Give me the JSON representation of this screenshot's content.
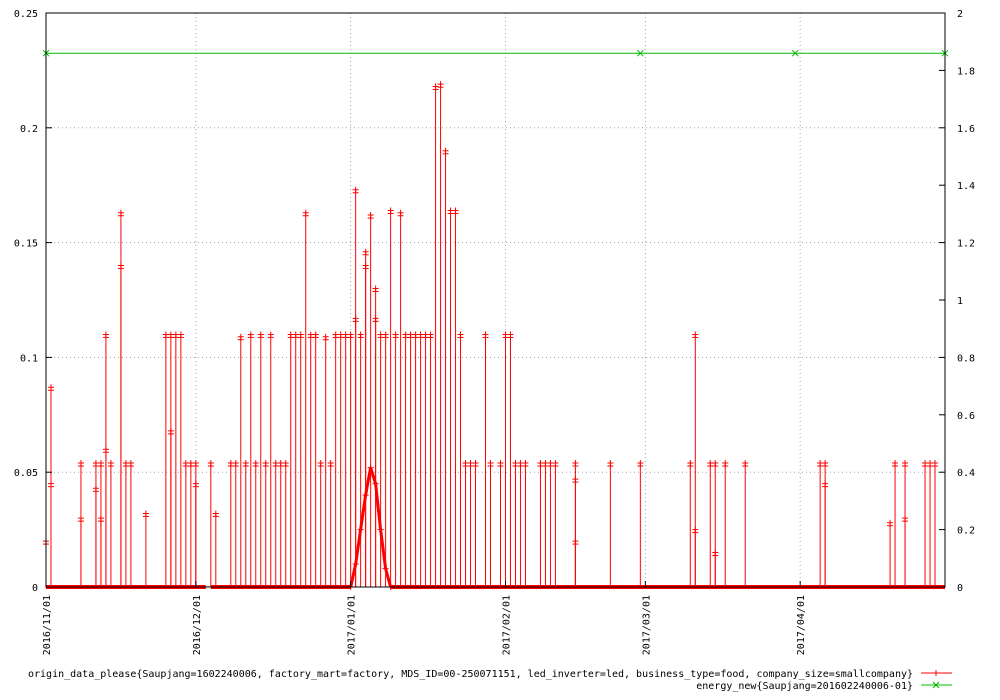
{
  "chart_data": {
    "type": "line",
    "title": "",
    "xlabel": "",
    "ylabel": "",
    "y2label": "",
    "grid": true,
    "legend_position": "bottom-right",
    "x_range": [
      "2016-11-01",
      "2017-04-30"
    ],
    "x_ticks": [
      "2016/11/01",
      "2016/12/01",
      "2017/01/01",
      "2017/02/01",
      "2017/03/01",
      "2017/04/01"
    ],
    "y_range": [
      0,
      0.25
    ],
    "y_ticks": [
      "0",
      "0.05",
      "0.1",
      "0.15",
      "0.2",
      "0.25"
    ],
    "y2_range": [
      0,
      2
    ],
    "y2_ticks": [
      "0",
      "0.2",
      "0.4",
      "0.6",
      "0.8",
      "1",
      "1.2",
      "1.4",
      "1.6",
      "1.8",
      "2"
    ],
    "series": [
      {
        "name": "origin_data_please{Saupjang=1602240006, factory_mart=factory, MDS_ID=00-250071151, led_inverter=led, business_type=food, company_size=smallcompany}",
        "color": "#ff0000",
        "axis": "y",
        "marker": "plus",
        "spikes": [
          [
            "2016-11-01",
            0.02
          ],
          [
            "2016-11-02",
            0.087
          ],
          [
            "2016-11-02",
            0.045
          ],
          [
            "2016-11-08",
            0.054
          ],
          [
            "2016-11-08",
            0.03
          ],
          [
            "2016-11-11",
            0.054
          ],
          [
            "2016-11-11",
            0.043
          ],
          [
            "2016-11-12",
            0.054
          ],
          [
            "2016-11-12",
            0.03
          ],
          [
            "2016-11-13",
            0.11
          ],
          [
            "2016-11-13",
            0.06
          ],
          [
            "2016-11-14",
            0.054
          ],
          [
            "2016-11-16",
            0.163
          ],
          [
            "2016-11-16",
            0.14
          ],
          [
            "2016-11-17",
            0.054
          ],
          [
            "2016-11-18",
            0.054
          ],
          [
            "2016-11-21",
            0.032
          ],
          [
            "2016-11-25",
            0.11
          ],
          [
            "2016-11-26",
            0.11
          ],
          [
            "2016-11-26",
            0.068
          ],
          [
            "2016-11-27",
            0.11
          ],
          [
            "2016-11-28",
            0.11
          ],
          [
            "2016-11-29",
            0.054
          ],
          [
            "2016-11-30",
            0.054
          ],
          [
            "2016-12-01",
            0.054
          ],
          [
            "2016-12-01",
            0.045
          ],
          [
            "2016-12-04",
            0.054
          ],
          [
            "2016-12-05",
            0.032
          ],
          [
            "2016-12-08",
            0.054
          ],
          [
            "2016-12-09",
            0.054
          ],
          [
            "2016-12-10",
            0.109
          ],
          [
            "2016-12-11",
            0.054
          ],
          [
            "2016-12-12",
            0.11
          ],
          [
            "2016-12-13",
            0.054
          ],
          [
            "2016-12-14",
            0.11
          ],
          [
            "2016-12-15",
            0.054
          ],
          [
            "2016-12-16",
            0.11
          ],
          [
            "2016-12-17",
            0.054
          ],
          [
            "2016-12-18",
            0.054
          ],
          [
            "2016-12-19",
            0.054
          ],
          [
            "2016-12-20",
            0.11
          ],
          [
            "2016-12-21",
            0.11
          ],
          [
            "2016-12-22",
            0.11
          ],
          [
            "2016-12-23",
            0.163
          ],
          [
            "2016-12-24",
            0.11
          ],
          [
            "2016-12-25",
            0.11
          ],
          [
            "2016-12-26",
            0.054
          ],
          [
            "2016-12-27",
            0.109
          ],
          [
            "2016-12-28",
            0.054
          ],
          [
            "2016-12-29",
            0.11
          ],
          [
            "2016-12-30",
            0.11
          ],
          [
            "2016-12-31",
            0.11
          ],
          [
            "2017-01-01",
            0.11
          ],
          [
            "2017-01-02",
            0.173
          ],
          [
            "2017-01-02",
            0.117
          ],
          [
            "2017-01-03",
            0.11
          ],
          [
            "2017-01-04",
            0.146
          ],
          [
            "2017-01-04",
            0.14
          ],
          [
            "2017-01-05",
            0.162
          ],
          [
            "2017-01-06",
            0.13
          ],
          [
            "2017-01-06",
            0.117
          ],
          [
            "2017-01-07",
            0.11
          ],
          [
            "2017-01-08",
            0.11
          ],
          [
            "2017-01-09",
            0.164
          ],
          [
            "2017-01-10",
            0.11
          ],
          [
            "2017-01-11",
            0.163
          ],
          [
            "2017-01-12",
            0.11
          ],
          [
            "2017-01-13",
            0.11
          ],
          [
            "2017-01-14",
            0.11
          ],
          [
            "2017-01-15",
            0.11
          ],
          [
            "2017-01-16",
            0.11
          ],
          [
            "2017-01-17",
            0.11
          ],
          [
            "2017-01-18",
            0.218
          ],
          [
            "2017-01-19",
            0.219
          ],
          [
            "2017-01-20",
            0.19
          ],
          [
            "2017-01-21",
            0.164
          ],
          [
            "2017-01-22",
            0.164
          ],
          [
            "2017-01-23",
            0.11
          ],
          [
            "2017-01-24",
            0.054
          ],
          [
            "2017-01-25",
            0.054
          ],
          [
            "2017-01-26",
            0.054
          ],
          [
            "2017-01-28",
            0.11
          ],
          [
            "2017-01-29",
            0.054
          ],
          [
            "2017-01-31",
            0.054
          ],
          [
            "2017-02-01",
            0.11
          ],
          [
            "2017-02-02",
            0.11
          ],
          [
            "2017-02-03",
            0.054
          ],
          [
            "2017-02-04",
            0.054
          ],
          [
            "2017-02-05",
            0.054
          ],
          [
            "2017-02-08",
            0.054
          ],
          [
            "2017-02-09",
            0.054
          ],
          [
            "2017-02-10",
            0.054
          ],
          [
            "2017-02-11",
            0.054
          ],
          [
            "2017-02-15",
            0.054
          ],
          [
            "2017-02-15",
            0.047
          ],
          [
            "2017-02-15",
            0.02
          ],
          [
            "2017-02-22",
            0.054
          ],
          [
            "2017-02-28",
            0.054
          ],
          [
            "2017-03-10",
            0.054
          ],
          [
            "2017-03-11",
            0.11
          ],
          [
            "2017-03-11",
            0.025
          ],
          [
            "2017-03-14",
            0.054
          ],
          [
            "2017-03-15",
            0.054
          ],
          [
            "2017-03-15",
            0.015
          ],
          [
            "2017-03-17",
            0.054
          ],
          [
            "2017-03-21",
            0.054
          ],
          [
            "2017-04-05",
            0.054
          ],
          [
            "2017-04-06",
            0.054
          ],
          [
            "2017-04-06",
            0.045
          ],
          [
            "2017-04-19",
            0.028
          ],
          [
            "2017-04-20",
            0.054
          ],
          [
            "2017-04-22",
            0.054
          ],
          [
            "2017-04-22",
            0.03
          ],
          [
            "2017-04-26",
            0.054
          ],
          [
            "2017-04-27",
            0.054
          ],
          [
            "2017-04-28",
            0.054
          ]
        ],
        "curve_points": [
          [
            "2017-01-01",
            0.0
          ],
          [
            "2017-01-02",
            0.01
          ],
          [
            "2017-01-03",
            0.025
          ],
          [
            "2017-01-04",
            0.04
          ],
          [
            "2017-01-05",
            0.052
          ],
          [
            "2017-01-06",
            0.045
          ],
          [
            "2017-01-07",
            0.025
          ],
          [
            "2017-01-08",
            0.008
          ],
          [
            "2017-01-09",
            0.0
          ]
        ],
        "baseline_gaps": [
          [
            "2016-12-03",
            "2016-12-04"
          ],
          [
            "2017-01-01",
            "2017-01-09"
          ]
        ]
      },
      {
        "name": "energy_new{Saupjang=201602240006-01}",
        "color": "#00bb00",
        "axis": "y2",
        "marker": "cross",
        "points": [
          [
            "2016-11-01",
            1.86
          ],
          [
            "2017-02-28",
            1.86
          ],
          [
            "2017-03-31",
            1.86
          ],
          [
            "2017-04-30",
            1.86
          ]
        ]
      }
    ]
  }
}
